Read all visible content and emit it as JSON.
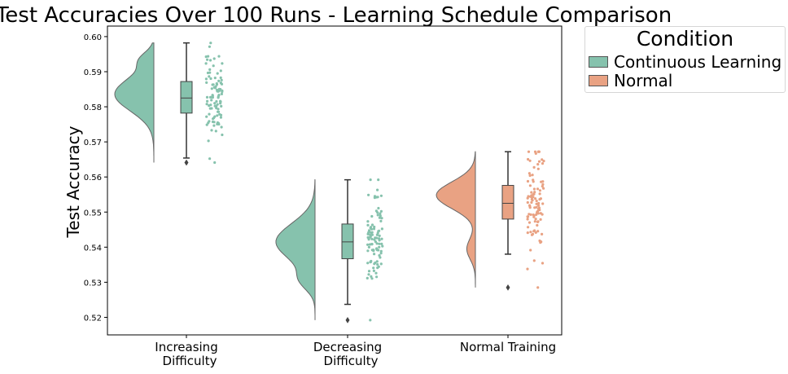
{
  "chart_data": {
    "type": "raincloud",
    "title": "Test Accuracies Over 100 Runs - Learning Schedule Comparison",
    "xlabel": "",
    "ylabel": "Test Accuracy",
    "ylim": [
      0.515,
      0.603
    ],
    "yticks": [
      "0.52",
      "0.53",
      "0.54",
      "0.55",
      "0.56",
      "0.57",
      "0.58",
      "0.59",
      "0.60"
    ],
    "categories": [
      "Increasing\nDifficulty",
      "Decreasing\nDifficulty",
      "Normal Training"
    ],
    "legend": {
      "title": "Condition",
      "placement": "outside-right",
      "entries": [
        {
          "label": "Continuous Learning",
          "color": "#86c2ad"
        },
        {
          "label": "Normal",
          "color": "#e9a283"
        }
      ]
    },
    "groups": [
      {
        "category": "Increasing Difficulty",
        "condition": "Continuous Learning",
        "color": "#86c2ad",
        "whisker_low": 0.5654,
        "q1": 0.5782,
        "median": 0.5825,
        "q3": 0.5872,
        "whisker_high": 0.5982,
        "outliers": [
          0.5641
        ],
        "min": 0.5641,
        "max": 0.5982
      },
      {
        "category": "Decreasing Difficulty",
        "condition": "Continuous Learning",
        "color": "#86c2ad",
        "whisker_low": 0.5237,
        "q1": 0.5367,
        "median": 0.5415,
        "q3": 0.5466,
        "whisker_high": 0.5592,
        "outliers": [
          0.5192
        ],
        "min": 0.5192,
        "max": 0.5592
      },
      {
        "category": "Normal Training",
        "condition": "Normal",
        "color": "#e9a283",
        "whisker_low": 0.538,
        "q1": 0.548,
        "median": 0.5525,
        "q3": 0.5576,
        "whisker_high": 0.5672,
        "outliers": [
          0.5285
        ],
        "min": 0.5285,
        "max": 0.5672
      }
    ]
  }
}
